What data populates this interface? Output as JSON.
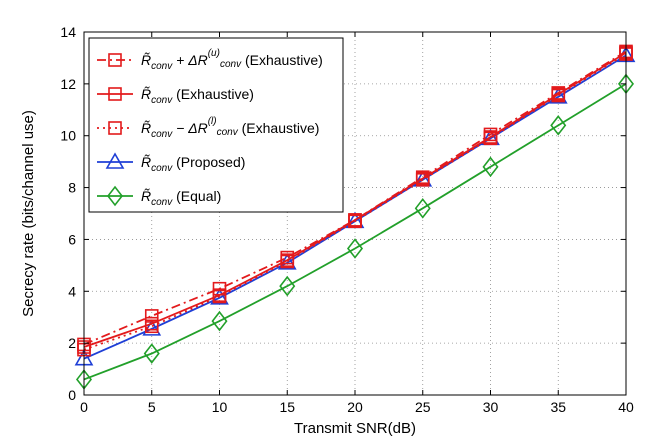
{
  "chart_data": {
    "type": "line",
    "title": "",
    "xlabel": "Transmit SNR(dB)",
    "ylabel": "Secrecy rate (bits/channel use)",
    "xlim": [
      0,
      40
    ],
    "ylim": [
      0,
      14
    ],
    "xticks": [
      "0",
      "5",
      "10",
      "15",
      "20",
      "25",
      "30",
      "35",
      "40"
    ],
    "yticks": [
      "0",
      "2",
      "4",
      "6",
      "8",
      "10",
      "12",
      "14"
    ],
    "grid": true,
    "legend_position": "top-left",
    "x": [
      0,
      5,
      10,
      15,
      20,
      25,
      30,
      35,
      40
    ],
    "series": [
      {
        "name": "R̃conv + ΔR(u)conv (Exhaustive)",
        "legend_main": "R̃",
        "legend_sub": "conv",
        "legend_mid": " + ΔR",
        "legend_sup": "(u)",
        "legend_sub2": "conv",
        "legend_tail": " (Exhaustive)",
        "color": "#e31a1c",
        "line": "dashdot",
        "marker": "square",
        "values": [
          1.95,
          3.05,
          4.1,
          5.3,
          6.75,
          8.4,
          10.05,
          11.65,
          13.25
        ]
      },
      {
        "name": "R̃conv (Exhaustive)",
        "legend_main": "R̃",
        "legend_sub": "conv",
        "legend_mid": "",
        "legend_sup": "",
        "legend_sub2": "",
        "legend_tail": " (Exhaustive)",
        "color": "#e31a1c",
        "line": "solid",
        "marker": "square",
        "values": [
          1.85,
          2.75,
          3.85,
          5.2,
          6.75,
          8.35,
          9.95,
          11.6,
          13.2
        ]
      },
      {
        "name": "R̃conv − ΔR(l)conv (Exhaustive)",
        "legend_main": "R̃",
        "legend_sub": "conv",
        "legend_mid": " − ΔR",
        "legend_sup": "(l)",
        "legend_sub2": "conv",
        "legend_tail": " (Exhaustive)",
        "color": "#e31a1c",
        "line": "dotted",
        "marker": "square",
        "values": [
          1.75,
          2.65,
          3.8,
          5.15,
          6.7,
          8.3,
          9.9,
          11.55,
          13.15
        ]
      },
      {
        "name": "R̃conv (Proposed)",
        "legend_main": "R̃",
        "legend_sub": "conv",
        "legend_mid": "",
        "legend_sup": "",
        "legend_sub2": "",
        "legend_tail": " (Proposed)",
        "color": "#1f3fd6",
        "line": "solid",
        "marker": "triangle",
        "values": [
          1.4,
          2.55,
          3.75,
          5.1,
          6.7,
          8.3,
          9.9,
          11.5,
          13.1
        ]
      },
      {
        "name": "R̃conv (Equal)",
        "legend_main": "R̃",
        "legend_sub": "conv",
        "legend_mid": "",
        "legend_sup": "",
        "legend_sub2": "",
        "legend_tail": " (Equal)",
        "color": "#22a02a",
        "line": "solid",
        "marker": "diamond",
        "values": [
          0.6,
          1.6,
          2.85,
          4.2,
          5.65,
          7.2,
          8.8,
          10.4,
          12.0
        ]
      }
    ]
  }
}
